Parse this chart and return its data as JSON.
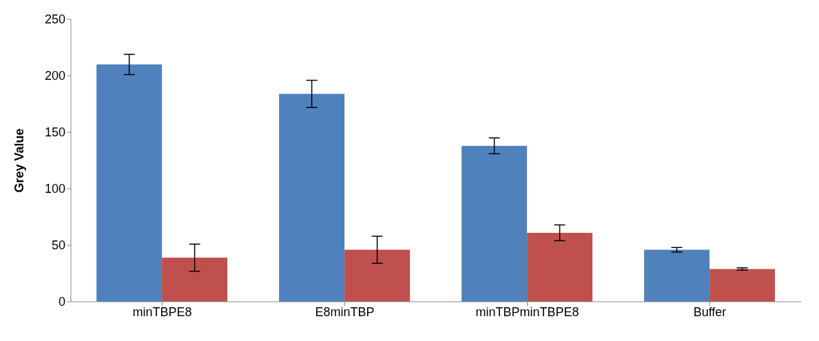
{
  "chart_data": {
    "type": "bar",
    "ylabel": "Grey Value",
    "categories": [
      "minTBPE8",
      "E8minTBP",
      "minTBPminTBPE8",
      "Buffer"
    ],
    "series": [
      {
        "color": "#4f81bd",
        "values": [
          210,
          184,
          138,
          46
        ],
        "errors": [
          9,
          12,
          7,
          2
        ]
      },
      {
        "color": "#c0504d",
        "values": [
          39,
          46,
          61,
          29
        ],
        "errors": [
          12,
          12,
          7,
          1
        ]
      }
    ],
    "ylim": [
      0,
      250
    ],
    "yticks": [
      0,
      50,
      100,
      150,
      200,
      250
    ],
    "grid": false,
    "legend": false
  }
}
